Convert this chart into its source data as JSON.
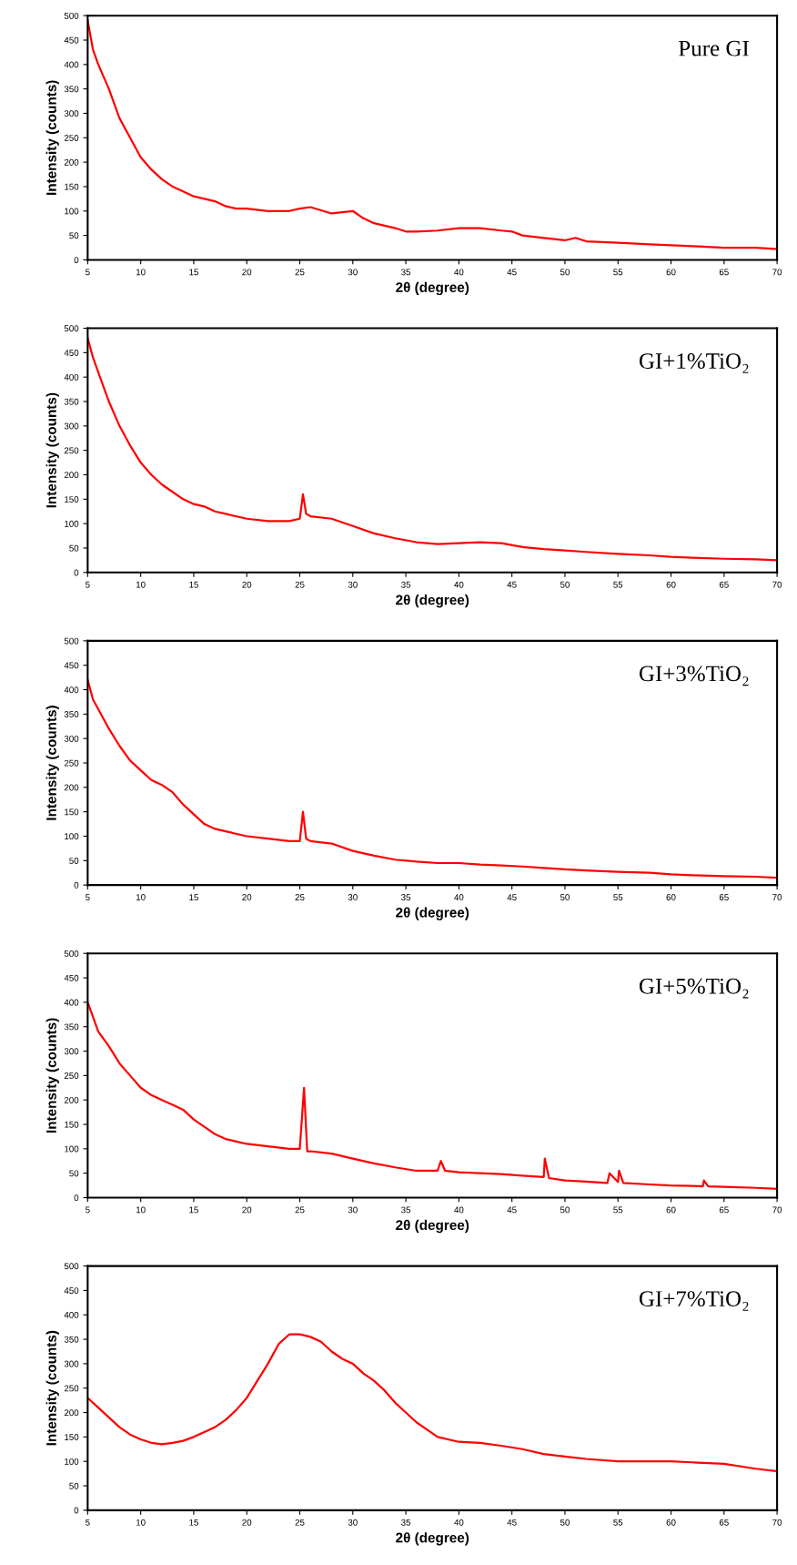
{
  "chart_data": [
    {
      "type": "line",
      "title": "Pure GI",
      "xlabel": "2θ (degree)",
      "ylabel": "Intensity (counts)",
      "xlim": [
        5,
        70
      ],
      "ylim": [
        0,
        500
      ],
      "xticks": [
        5,
        10,
        15,
        20,
        25,
        30,
        35,
        40,
        45,
        50,
        55,
        60,
        65,
        70
      ],
      "yticks": [
        0,
        50,
        100,
        150,
        200,
        250,
        300,
        350,
        400,
        450,
        500
      ],
      "grid": false,
      "legend": false,
      "series": [
        {
          "color": "#ff0000",
          "x": [
            5,
            5.5,
            6,
            7,
            8,
            9,
            10,
            11,
            12,
            13,
            14,
            15,
            16,
            17,
            18,
            19,
            20,
            22,
            24,
            25,
            26,
            28,
            30,
            31,
            32,
            34,
            35,
            36,
            38,
            40,
            42,
            44,
            45,
            46,
            48,
            50,
            51,
            52,
            55,
            58,
            60,
            62,
            65,
            68,
            70
          ],
          "values": [
            490,
            430,
            400,
            350,
            290,
            250,
            210,
            185,
            165,
            150,
            140,
            130,
            125,
            120,
            110,
            105,
            105,
            100,
            100,
            105,
            108,
            95,
            100,
            85,
            75,
            65,
            58,
            58,
            60,
            65,
            65,
            60,
            58,
            50,
            45,
            40,
            45,
            38,
            35,
            32,
            30,
            28,
            25,
            25,
            22
          ]
        }
      ]
    },
    {
      "type": "line",
      "title": "GI+1%TiO₂",
      "xlabel": "2θ (degree)",
      "ylabel": "Intensity (counts)",
      "xlim": [
        5,
        70
      ],
      "ylim": [
        0,
        500
      ],
      "xticks": [
        5,
        10,
        15,
        20,
        25,
        30,
        35,
        40,
        45,
        50,
        55,
        60,
        65,
        70
      ],
      "yticks": [
        0,
        50,
        100,
        150,
        200,
        250,
        300,
        350,
        400,
        450,
        500
      ],
      "grid": false,
      "legend": false,
      "series": [
        {
          "color": "#ff0000",
          "x": [
            5,
            5.5,
            6,
            7,
            8,
            9,
            10,
            11,
            12,
            13,
            14,
            15,
            16,
            17,
            18,
            20,
            22,
            24,
            25,
            25.3,
            25.6,
            26,
            28,
            30,
            32,
            34,
            36,
            38,
            40,
            42,
            44,
            46,
            48,
            50,
            52,
            55,
            58,
            60,
            62,
            65,
            68,
            70
          ],
          "values": [
            480,
            440,
            410,
            350,
            300,
            260,
            225,
            200,
            180,
            165,
            150,
            140,
            135,
            125,
            120,
            110,
            105,
            105,
            110,
            160,
            120,
            115,
            110,
            95,
            80,
            70,
            62,
            58,
            60,
            62,
            60,
            52,
            48,
            45,
            42,
            38,
            35,
            32,
            30,
            28,
            27,
            25
          ]
        }
      ]
    },
    {
      "type": "line",
      "title": "GI+3%TiO₂",
      "xlabel": "2θ (degree)",
      "ylabel": "Intensity (counts)",
      "xlim": [
        5,
        70
      ],
      "ylim": [
        0,
        500
      ],
      "xticks": [
        5,
        10,
        15,
        20,
        25,
        30,
        35,
        40,
        45,
        50,
        55,
        60,
        65,
        70
      ],
      "yticks": [
        0,
        50,
        100,
        150,
        200,
        250,
        300,
        350,
        400,
        450,
        500
      ],
      "grid": false,
      "legend": false,
      "series": [
        {
          "color": "#ff0000",
          "x": [
            5,
            5.5,
            6,
            7,
            8,
            9,
            10,
            11,
            12,
            13,
            14,
            15,
            16,
            17,
            18,
            20,
            22,
            24,
            25,
            25.3,
            25.6,
            26,
            28,
            30,
            32,
            34,
            36,
            38,
            40,
            42,
            44,
            46,
            48,
            50,
            52,
            55,
            58,
            60,
            62,
            65,
            68,
            70
          ],
          "values": [
            420,
            380,
            360,
            320,
            285,
            255,
            235,
            215,
            205,
            190,
            165,
            145,
            125,
            115,
            110,
            100,
            95,
            90,
            90,
            150,
            95,
            90,
            85,
            70,
            60,
            52,
            48,
            45,
            45,
            42,
            40,
            38,
            35,
            32,
            30,
            27,
            25,
            22,
            20,
            18,
            17,
            15
          ]
        }
      ]
    },
    {
      "type": "line",
      "title": "GI+5%TiO₂",
      "xlabel": "2θ (degree)",
      "ylabel": "Intensity (counts)",
      "xlim": [
        5,
        70
      ],
      "ylim": [
        0,
        500
      ],
      "xticks": [
        5,
        10,
        15,
        20,
        25,
        30,
        35,
        40,
        45,
        50,
        55,
        60,
        65,
        70
      ],
      "yticks": [
        0,
        50,
        100,
        150,
        200,
        250,
        300,
        350,
        400,
        450,
        500
      ],
      "grid": false,
      "legend": false,
      "series": [
        {
          "color": "#ff0000",
          "x": [
            5,
            5.5,
            6,
            7,
            8,
            9,
            10,
            11,
            12,
            13,
            14,
            15,
            16,
            17,
            18,
            20,
            22,
            24,
            25,
            25.4,
            25.7,
            26,
            28,
            30,
            32,
            34,
            36,
            38,
            38.3,
            38.7,
            40,
            42,
            44,
            46,
            48,
            48.1,
            48.5,
            50,
            52,
            54,
            54.2,
            55,
            55.1,
            55.5,
            58,
            60,
            62,
            63,
            63.1,
            63.5,
            65,
            68,
            70
          ],
          "values": [
            400,
            370,
            340,
            310,
            275,
            250,
            225,
            210,
            200,
            190,
            180,
            160,
            145,
            130,
            120,
            110,
            105,
            100,
            100,
            225,
            95,
            95,
            90,
            80,
            70,
            62,
            55,
            55,
            75,
            55,
            52,
            50,
            48,
            45,
            42,
            80,
            40,
            35,
            33,
            30,
            50,
            32,
            55,
            30,
            27,
            25,
            24,
            23,
            35,
            23,
            22,
            20,
            18
          ]
        }
      ]
    },
    {
      "type": "line",
      "title": "GI+7%TiO₂",
      "xlabel": "2θ (degree)",
      "ylabel": "Intensity (counts)",
      "xlim": [
        5,
        70
      ],
      "ylim": [
        0,
        500
      ],
      "xticks": [
        5,
        10,
        15,
        20,
        25,
        30,
        35,
        40,
        45,
        50,
        55,
        60,
        65,
        70
      ],
      "yticks": [
        0,
        50,
        100,
        150,
        200,
        250,
        300,
        350,
        400,
        450,
        500
      ],
      "grid": false,
      "legend": false,
      "series": [
        {
          "color": "#ff0000",
          "x": [
            5,
            6,
            7,
            8,
            9,
            10,
            11,
            12,
            13,
            14,
            15,
            16,
            17,
            18,
            19,
            20,
            21,
            22,
            23,
            24,
            25,
            26,
            27,
            28,
            29,
            30,
            31,
            32,
            33,
            34,
            35,
            36,
            37,
            38,
            40,
            42,
            44,
            46,
            48,
            50,
            52,
            55,
            58,
            60,
            62,
            65,
            68,
            70
          ],
          "values": [
            230,
            210,
            190,
            170,
            155,
            145,
            138,
            135,
            138,
            142,
            150,
            160,
            170,
            185,
            205,
            230,
            265,
            300,
            340,
            360,
            360,
            355,
            345,
            325,
            310,
            300,
            280,
            265,
            245,
            220,
            200,
            180,
            165,
            150,
            140,
            138,
            132,
            125,
            115,
            110,
            105,
            100,
            100,
            100,
            98,
            95,
            85,
            80
          ]
        }
      ]
    }
  ]
}
